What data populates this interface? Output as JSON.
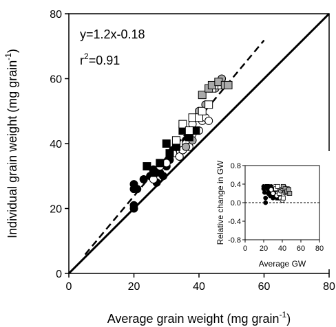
{
  "chart_data": [
    {
      "type": "scatter",
      "panel": "main",
      "xlabel": "Average grain weight (mg grain",
      "xlabel_sup": "-1",
      "xlabel_end": ")",
      "ylabel": "Individual grain weight (mg grain",
      "ylabel_sup": "-1",
      "ylabel_end": ")",
      "xlim": [
        0,
        80
      ],
      "ylim": [
        0,
        80
      ],
      "xticks": [
        0,
        20,
        40,
        60,
        80
      ],
      "yticks": [
        0,
        20,
        40,
        60,
        80
      ],
      "grid": false,
      "annotations": {
        "equation": "y=1.2x-0.18",
        "r2_prefix": "r",
        "r2_sup": "2",
        "r2_value": "=0.91"
      },
      "lines": [
        {
          "kind": "1:1",
          "style": "solid",
          "x": [
            0,
            80
          ],
          "y": [
            0,
            80
          ]
        },
        {
          "kind": "regression",
          "style": "dashed",
          "x": [
            5,
            60
          ],
          "y": [
            5.82,
            71.82
          ]
        }
      ],
      "series": [
        {
          "marker": "circle",
          "fill": "#000000",
          "points": [
            [
              20,
              20
            ],
            [
              20,
              21
            ],
            [
              20,
              26
            ],
            [
              20,
              27.5
            ],
            [
              21,
              26
            ],
            [
              23,
              29
            ],
            [
              25,
              30
            ],
            [
              26,
              32
            ],
            [
              27,
              28
            ],
            [
              28,
              31
            ],
            [
              29,
              30
            ],
            [
              30,
              33
            ],
            [
              31,
              35
            ],
            [
              32,
              38
            ],
            [
              33,
              39
            ],
            [
              34,
              36
            ],
            [
              35,
              38
            ],
            [
              36,
              41
            ],
            [
              37,
              42
            ]
          ]
        },
        {
          "marker": "circle",
          "fill": "#ffffff",
          "points": [
            [
              26,
              29
            ],
            [
              28,
              33
            ],
            [
              30,
              34
            ],
            [
              32,
              37
            ],
            [
              34,
              36
            ],
            [
              35,
              38
            ],
            [
              36,
              40
            ],
            [
              37,
              39
            ],
            [
              38,
              43
            ],
            [
              38,
              46
            ],
            [
              40,
              44
            ],
            [
              41,
              47
            ],
            [
              42,
              48
            ],
            [
              43,
              47
            ]
          ]
        },
        {
          "marker": "circle",
          "fill": "#aaaaaa",
          "points": [
            [
              36,
              39
            ],
            [
              37,
              42
            ],
            [
              38,
              41
            ],
            [
              40,
              50
            ],
            [
              42,
              52
            ],
            [
              44,
              58
            ],
            [
              45,
              57
            ],
            [
              46,
              59
            ],
            [
              47,
              60
            ]
          ]
        },
        {
          "marker": "square",
          "fill": "#000000",
          "points": [
            [
              24,
              33
            ],
            [
              26,
              31
            ],
            [
              28,
              34
            ],
            [
              30,
              40
            ],
            [
              31,
              37
            ],
            [
              33,
              39
            ],
            [
              35,
              44
            ],
            [
              37,
              42
            ],
            [
              39,
              44
            ]
          ]
        },
        {
          "marker": "square",
          "fill": "#ffffff",
          "points": [
            [
              33,
              41
            ],
            [
              35,
              46
            ],
            [
              37,
              44
            ],
            [
              38,
              48
            ],
            [
              40,
              48
            ],
            [
              41,
              50
            ],
            [
              43,
              52
            ],
            [
              44,
              57
            ],
            [
              46,
              58
            ],
            [
              47,
              58
            ]
          ]
        },
        {
          "marker": "square",
          "fill": "#aaaaaa",
          "points": [
            [
              41,
              55
            ],
            [
              43,
              57
            ],
            [
              44,
              58
            ],
            [
              46,
              59
            ],
            [
              48,
              58
            ],
            [
              49,
              58
            ]
          ]
        }
      ]
    },
    {
      "type": "scatter",
      "panel": "inset",
      "xlabel": "Average GW",
      "ylabel": "Relative change in GW",
      "xlim": [
        0,
        80
      ],
      "ylim": [
        -0.8,
        0.8
      ],
      "xticks": [
        "0",
        "20",
        "40",
        "60",
        "80"
      ],
      "yticks": [
        "-0.8",
        "-0.4",
        "0.0",
        "0.4",
        "0.8"
      ],
      "reference_line": {
        "y": 0,
        "style": "dashed"
      },
      "grid": false,
      "series": [
        {
          "marker": "circle",
          "fill": "#000000",
          "points": [
            [
              20,
              0.3
            ],
            [
              20,
              0.35
            ],
            [
              21,
              0.22
            ],
            [
              22,
              0.1
            ],
            [
              22,
              0
            ],
            [
              24,
              0.3
            ],
            [
              25,
              0.2
            ],
            [
              26,
              0.25
            ],
            [
              27,
              0.15
            ],
            [
              28,
              0.35
            ],
            [
              30,
              0.1
            ],
            [
              31,
              0.2
            ],
            [
              32,
              0.28
            ]
          ]
        },
        {
          "marker": "square",
          "fill": "#000000",
          "points": [
            [
              24,
              0.35
            ],
            [
              26,
              0.2
            ],
            [
              28,
              0.15
            ],
            [
              30,
              0.3
            ],
            [
              33,
              0.12
            ],
            [
              35,
              0.1
            ]
          ]
        },
        {
          "marker": "circle",
          "fill": "#ffffff",
          "points": [
            [
              28,
              0.28
            ],
            [
              30,
              0.2
            ],
            [
              32,
              0.35
            ],
            [
              34,
              0.15
            ],
            [
              36,
              0.25
            ],
            [
              38,
              0.1
            ],
            [
              40,
              0.05
            ],
            [
              41,
              0.18
            ]
          ]
        },
        {
          "marker": "square",
          "fill": "#ffffff",
          "points": [
            [
              33,
              0.3
            ],
            [
              35,
              0.35
            ],
            [
              37,
              0.2
            ],
            [
              39,
              0.28
            ],
            [
              41,
              0.1
            ],
            [
              43,
              0.22
            ],
            [
              45,
              0.3
            ]
          ]
        },
        {
          "marker": "circle",
          "fill": "#aaaaaa",
          "points": [
            [
              38,
              0.25
            ],
            [
              40,
              0.3
            ],
            [
              42,
              0.35
            ],
            [
              44,
              0.22
            ],
            [
              46,
              0.2
            ],
            [
              47,
              0.3
            ]
          ]
        },
        {
          "marker": "square",
          "fill": "#aaaaaa",
          "points": [
            [
              41,
              0.35
            ],
            [
              43,
              0.3
            ],
            [
              45,
              0.25
            ],
            [
              47,
              0.28
            ],
            [
              48,
              0.2
            ]
          ]
        }
      ]
    }
  ]
}
